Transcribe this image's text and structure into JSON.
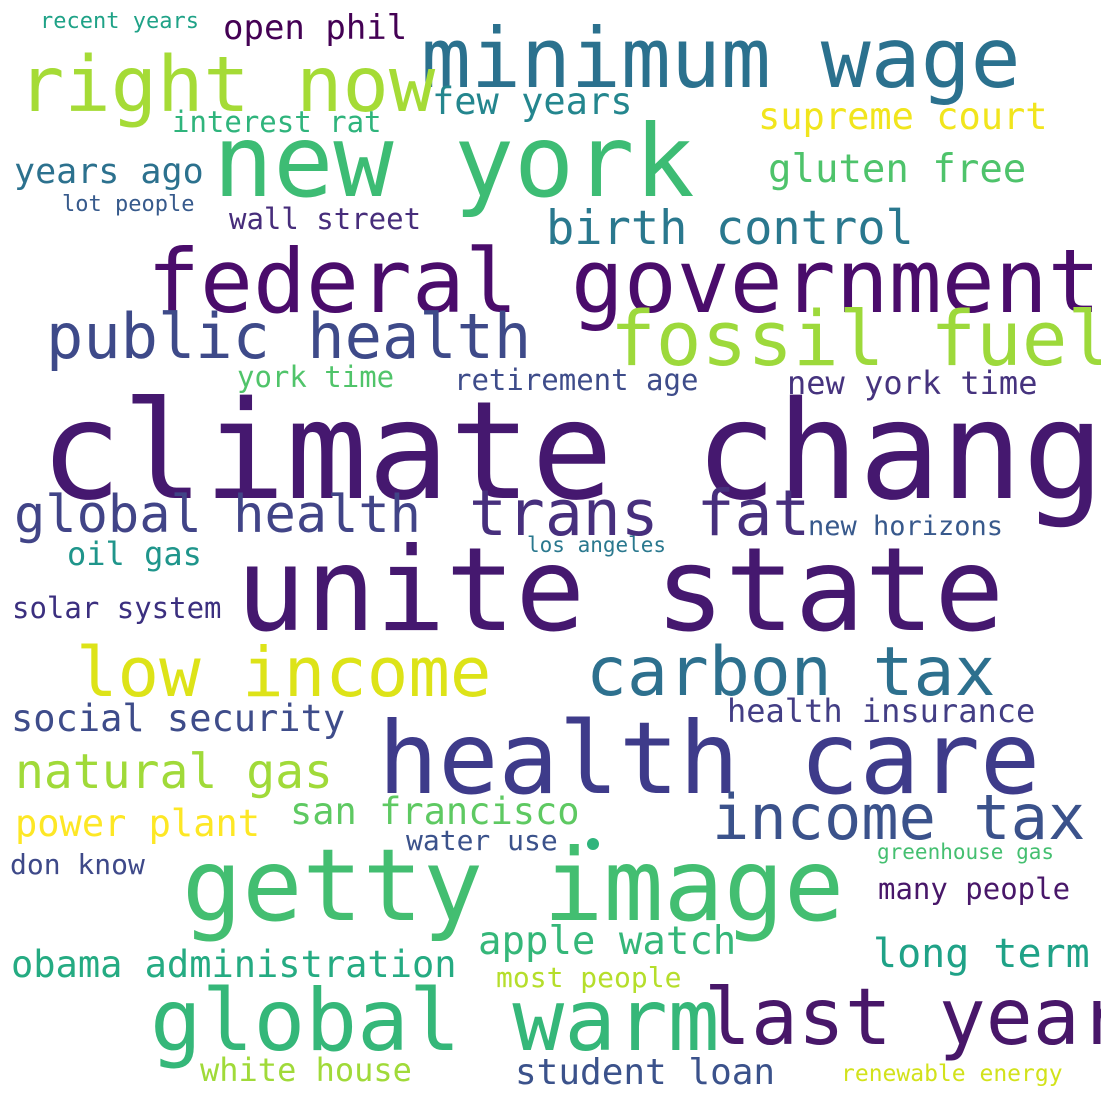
{
  "palette": {
    "purple_dark": "#440154",
    "indigo": "#3b2f7f",
    "navy": "#31468a",
    "blue": "#2e6e8e",
    "teal": "#21918c",
    "green": "#35b779",
    "lime": "#8fd744",
    "yellow": "#fde725"
  },
  "words": [
    {
      "text": "climate change",
      "color": "#45186f"
    },
    {
      "text": "unite state",
      "color": "#45186f"
    },
    {
      "text": "new york",
      "color": "#3dbc74"
    },
    {
      "text": "federal government",
      "color": "#4a0c6b"
    },
    {
      "text": "health care",
      "color": "#3e3b8a"
    },
    {
      "text": "getty image",
      "color": "#43be71"
    },
    {
      "text": "global warm",
      "color": "#35b779"
    },
    {
      "text": "minimum wage",
      "color": "#2b718e"
    },
    {
      "text": "right now",
      "color": "#a5db36"
    },
    {
      "text": "fossil fuel",
      "color": "#9dd93b"
    },
    {
      "text": "public health",
      "color": "#3e4a89"
    },
    {
      "text": "last year",
      "color": "#481769"
    },
    {
      "text": "carbon tax",
      "color": "#2d708e"
    },
    {
      "text": "low income",
      "color": "#dde318"
    },
    {
      "text": "trans fat",
      "color": "#472f7d"
    },
    {
      "text": "income tax",
      "color": "#3b528b"
    },
    {
      "text": "global health",
      "color": "#414487"
    },
    {
      "text": "birth control",
      "color": "#2a788e"
    },
    {
      "text": "natural gas",
      "color": "#a0da39"
    },
    {
      "text": "apple watch",
      "color": "#35b779"
    },
    {
      "text": "supreme court",
      "color": "#f1e51d"
    },
    {
      "text": "gluten free",
      "color": "#4ec36b"
    },
    {
      "text": "obama administration",
      "color": "#25ab82"
    },
    {
      "text": "long term",
      "color": "#1fa287"
    },
    {
      "text": "few years",
      "color": "#24868e"
    },
    {
      "text": "san francisco",
      "color": "#5ec962"
    },
    {
      "text": "power plant",
      "color": "#fde725"
    },
    {
      "text": "social security",
      "color": "#3e4c8a"
    },
    {
      "text": "years ago",
      "color": "#2c718e"
    },
    {
      "text": "health insurance",
      "color": "#433e85"
    },
    {
      "text": "new york time",
      "color": "#46337e"
    },
    {
      "text": "student loan",
      "color": "#3b528b"
    },
    {
      "text": "white house",
      "color": "#a0da39"
    },
    {
      "text": "open phil",
      "color": "#440154"
    },
    {
      "text": "interest rat",
      "color": "#2fb47c"
    },
    {
      "text": "york time",
      "color": "#50c46a"
    },
    {
      "text": "retirement age",
      "color": "#3e4c8a"
    },
    {
      "text": "oil gas",
      "color": "#1f958b"
    },
    {
      "text": "wall street",
      "color": "#472d7b"
    },
    {
      "text": "solar system",
      "color": "#3b2f7f"
    },
    {
      "text": "many people",
      "color": "#481769"
    },
    {
      "text": "don know",
      "color": "#3e4989"
    },
    {
      "text": "most people",
      "color": "#b5de2b"
    },
    {
      "text": "water use",
      "color": "#3b528b"
    },
    {
      "text": "new horizons",
      "color": "#38598c"
    },
    {
      "text": "greenhouse gas",
      "color": "#44bf70"
    },
    {
      "text": "renewable energy",
      "color": "#d2e21b"
    },
    {
      "text": "recent years",
      "color": "#1fa287"
    },
    {
      "text": "lot people",
      "color": "#375a8c"
    },
    {
      "text": "los angeles",
      "color": "#2a788e"
    }
  ],
  "dot_color": "#2fb47c"
}
